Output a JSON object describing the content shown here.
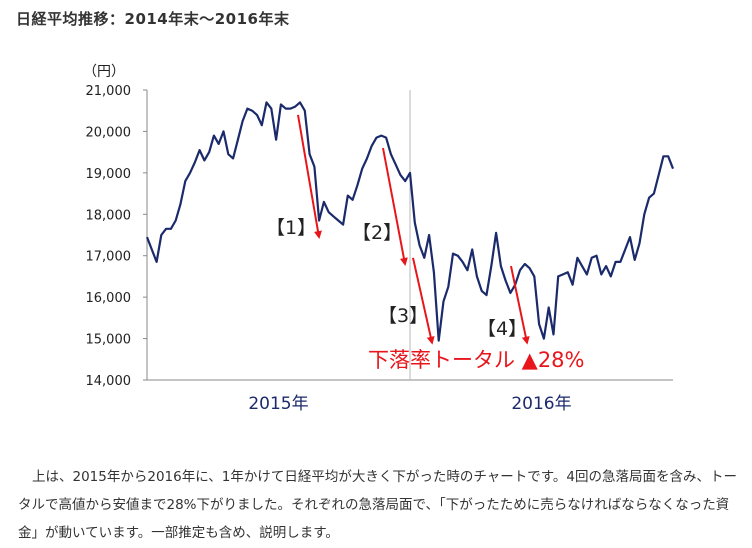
{
  "page": {
    "title": "日経平均推移：2014年末〜2016年末",
    "caption": "上は、2015年から2016年に、1年かけて日経平均が大きく下がった時のチャートです。4回の急落局面を含み、トータルで高値から安値まで28%下がりました。それぞれの急落局面で、「下がったために売らなければならなくなった資金」が動いています。一部推定も含め、説明します。"
  },
  "chart_data": {
    "type": "line",
    "title": "",
    "ylabel": "（円）",
    "ylim": [
      14000,
      21000
    ],
    "yticks": [
      14000,
      15000,
      16000,
      17000,
      18000,
      19000,
      20000,
      21000
    ],
    "ytick_labels": [
      "14,000",
      "15,000",
      "16,000",
      "17,000",
      "18,000",
      "19,000",
      "20,000",
      "21,000"
    ],
    "xtick_labels": [
      "2015年",
      "2016年"
    ],
    "grid": false,
    "year_divider": true,
    "series": [
      {
        "values": [
          17450,
          17150,
          16850,
          17500,
          17650,
          17650,
          17850,
          18250,
          18800,
          19000,
          19250,
          19550,
          19300,
          19500,
          19900,
          19700,
          20000,
          19450,
          19350,
          19800,
          20250,
          20550,
          20500,
          20400,
          20150,
          20700,
          20550,
          19800,
          20650,
          20550,
          20550,
          20600,
          20700,
          20500,
          19450,
          19150,
          17850,
          18300,
          18050,
          17950,
          17850,
          17750,
          18450,
          18350,
          18700,
          19100,
          19350,
          19650,
          19850,
          19900,
          19850,
          19450,
          19200,
          18950,
          18800,
          19000,
          17800,
          17250,
          16950,
          17500,
          16600,
          14950,
          15900,
          16250,
          17050,
          17000,
          16850,
          16650,
          17150,
          16500,
          16150,
          16050,
          16750,
          17550,
          16750,
          16400,
          16100,
          16300,
          16650,
          16800,
          16700,
          16500,
          15350,
          15000,
          15750,
          15100,
          16500,
          16550,
          16600,
          16300,
          16950,
          16750,
          16550,
          16950,
          17000,
          16550,
          16750,
          16500,
          16850,
          16850,
          17150,
          17450,
          16900,
          17300,
          18000,
          18400,
          18500,
          18950,
          19400,
          19400,
          19100
        ]
      }
    ],
    "annotations": [
      {
        "label": "【1】",
        "from": 20400,
        "to": 17450
      },
      {
        "label": "【2】",
        "from": 19600,
        "to": 16800
      },
      {
        "label": "【3】",
        "from": 16950,
        "to": 14900
      },
      {
        "label": "【4】",
        "from": 16750,
        "to": 14900
      }
    ],
    "total_label": "下落率トータル ▲28%",
    "colors": {
      "line": "#1b2a6b",
      "arrow": "#e8161b",
      "axis": "#8a8a8a",
      "year_label": "#1b2a6b",
      "total": "#e8161b"
    }
  }
}
